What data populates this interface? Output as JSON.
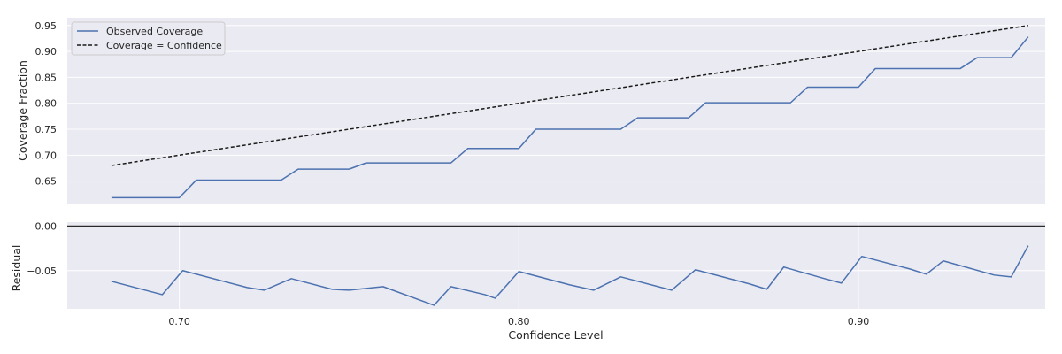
{
  "chart_data": [
    {
      "type": "line",
      "ylabel": "Coverage Fraction",
      "xlim": [
        0.667,
        0.955
      ],
      "ylim": [
        0.605,
        0.965
      ],
      "yticks": [
        {
          "value": 0.65,
          "label": "0.65"
        },
        {
          "value": 0.7,
          "label": "0.70"
        },
        {
          "value": 0.75,
          "label": "0.75"
        },
        {
          "value": 0.8,
          "label": "0.80"
        },
        {
          "value": 0.85,
          "label": "0.85"
        },
        {
          "value": 0.9,
          "label": "0.90"
        },
        {
          "value": 0.95,
          "label": "0.95"
        }
      ],
      "grid": true,
      "legend_position": "top-left",
      "background": "#eaeaf2",
      "series": [
        {
          "name": "Observed Coverage",
          "style": "solid",
          "color": "#4c72b0",
          "x": [
            0.68,
            0.69,
            0.695,
            0.7,
            0.705,
            0.71,
            0.715,
            0.72,
            0.725,
            0.73,
            0.735,
            0.74,
            0.745,
            0.75,
            0.755,
            0.76,
            0.765,
            0.77,
            0.775,
            0.78,
            0.785,
            0.79,
            0.795,
            0.8,
            0.805,
            0.81,
            0.815,
            0.82,
            0.825,
            0.83,
            0.835,
            0.84,
            0.845,
            0.85,
            0.855,
            0.86,
            0.865,
            0.87,
            0.875,
            0.88,
            0.885,
            0.89,
            0.895,
            0.9,
            0.905,
            0.91,
            0.915,
            0.92,
            0.925,
            0.93,
            0.935,
            0.94,
            0.945,
            0.95
          ],
          "y": [
            0.618,
            0.618,
            0.618,
            0.618,
            0.652,
            0.652,
            0.652,
            0.652,
            0.652,
            0.652,
            0.673,
            0.673,
            0.673,
            0.673,
            0.685,
            0.685,
            0.685,
            0.685,
            0.685,
            0.685,
            0.713,
            0.713,
            0.713,
            0.713,
            0.75,
            0.75,
            0.75,
            0.75,
            0.75,
            0.75,
            0.772,
            0.772,
            0.772,
            0.772,
            0.801,
            0.801,
            0.801,
            0.801,
            0.801,
            0.801,
            0.831,
            0.831,
            0.831,
            0.831,
            0.867,
            0.867,
            0.867,
            0.867,
            0.867,
            0.867,
            0.888,
            0.888,
            0.888,
            0.928
          ]
        },
        {
          "name": "Coverage = Confidence",
          "style": "dashed",
          "color": "#1a1a1a",
          "x": [
            0.68,
            0.95
          ],
          "y": [
            0.68,
            0.95
          ]
        }
      ]
    },
    {
      "type": "line",
      "xlabel": "Confidence Level",
      "ylabel": "Residual",
      "xlim": [
        0.667,
        0.955
      ],
      "ylim": [
        -0.093,
        0.0045
      ],
      "xticks": [
        {
          "value": 0.7,
          "label": "0.70"
        },
        {
          "value": 0.8,
          "label": "0.80"
        },
        {
          "value": 0.9,
          "label": "0.90"
        }
      ],
      "yticks": [
        {
          "value": 0.0,
          "label": "0.00"
        },
        {
          "value": -0.05,
          "label": "−0.05"
        }
      ],
      "grid": true,
      "reference_line": 0.0,
      "background": "#eaeaf2",
      "series": [
        {
          "name": "",
          "style": "solid",
          "color": "#4c72b0",
          "x": [
            0.68,
            0.695,
            0.701,
            0.72,
            0.725,
            0.733,
            0.745,
            0.75,
            0.76,
            0.775,
            0.78,
            0.79,
            0.793,
            0.8,
            0.815,
            0.822,
            0.83,
            0.845,
            0.852,
            0.868,
            0.873,
            0.878,
            0.89,
            0.895,
            0.901,
            0.915,
            0.92,
            0.925,
            0.94,
            0.945,
            0.95
          ],
          "y": [
            -0.062,
            -0.077,
            -0.05,
            -0.069,
            -0.072,
            -0.059,
            -0.071,
            -0.072,
            -0.068,
            -0.089,
            -0.068,
            -0.077,
            -0.081,
            -0.051,
            -0.066,
            -0.072,
            -0.057,
            -0.072,
            -0.049,
            -0.065,
            -0.071,
            -0.046,
            -0.059,
            -0.064,
            -0.034,
            -0.048,
            -0.054,
            -0.039,
            -0.055,
            -0.057,
            -0.022
          ]
        }
      ]
    }
  ]
}
